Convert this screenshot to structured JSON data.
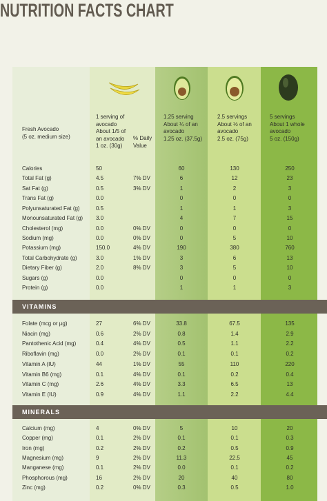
{
  "title": "NUTRITION FACTS CHART",
  "columns": [
    [
      "Fresh Avocado",
      "(5 oz. medium size)"
    ],
    [
      "1 serving of",
      "avocado",
      "About 1/5 of",
      "an avocado",
      "1 oz. (30g)"
    ],
    [
      "% Daily",
      "Value"
    ],
    [
      "1.25 serving",
      "About ¼ of an",
      "avocado",
      "1.25 oz. (37.5g)"
    ],
    [
      "2.5 servings",
      "About ½ of an",
      "avocado",
      "2.5 oz. (75g)"
    ],
    [
      "5 servings",
      "About 1 whole",
      "avocado",
      "5 oz. (150g)"
    ]
  ],
  "sections": [
    {
      "rows": [
        [
          "Calories",
          "50",
          null,
          "60",
          "130",
          "250"
        ],
        [
          "Total Fat (g)",
          "4.5",
          "7% DV",
          "6",
          "12",
          "23"
        ],
        [
          "Sat Fat (g)",
          "0.5",
          "3% DV",
          "1",
          "2",
          "3"
        ],
        [
          "Trans Fat (g)",
          "0.0",
          null,
          "0",
          "0",
          "0"
        ],
        [
          "Polyunsaturated Fat (g)",
          "0.5",
          null,
          "1",
          "1",
          "3"
        ],
        [
          "Monounsaturated Fat (g)",
          "3.0",
          null,
          "4",
          "7",
          "15"
        ],
        [
          "Cholesterol (mg)",
          "0.0",
          "0% DV",
          "0",
          "0",
          "0"
        ],
        [
          "Sodium (mg)",
          "0.0",
          "0% DV",
          "0",
          "5",
          "10"
        ],
        [
          "Potassium (mg)",
          "150.0",
          "4% DV",
          "190",
          "380",
          "760"
        ],
        [
          "Total Carbohydrate (g)",
          "3.0",
          "1% DV",
          "3",
          "6",
          "13"
        ],
        [
          "Dietary Fiber (g)",
          "2.0",
          "8% DV",
          "3",
          "5",
          "10"
        ],
        [
          "Sugars (g)",
          "0.0",
          null,
          "0",
          "0",
          "0"
        ],
        [
          "Protein (g)",
          "0.0",
          null,
          "1",
          "1",
          "3"
        ]
      ]
    },
    {
      "heading": "VITAMINS",
      "rows": [
        [
          "Folate (mcg or µg)",
          "27",
          "6% DV",
          "33.8",
          "67.5",
          "135"
        ],
        [
          "Niacin (mg)",
          "0.6",
          "2% DV",
          "0.8",
          "1.4",
          "2.9"
        ],
        [
          "Pantothenic Acid (mg)",
          "0.4",
          "4% DV",
          "0.5",
          "1.1",
          "2.2"
        ],
        [
          "Riboflavin (mg)",
          "0.0",
          "2% DV",
          "0.1",
          "0.1",
          "0.2"
        ],
        [
          "Vitamin A (IU)",
          "44",
          "1% DV",
          "55",
          "110",
          "220"
        ],
        [
          "Vitamin B6 (mg)",
          "0.1",
          "4% DV",
          "0.1",
          "0.2",
          "0.4"
        ],
        [
          "Vitamin C (mg)",
          "2.6",
          "4% DV",
          "3.3",
          "6.5",
          "13"
        ],
        [
          "Vitamin E (IU)",
          "0.9",
          "4% DV",
          "1.1",
          "2.2",
          "4.4"
        ]
      ]
    },
    {
      "heading": "MINERALS",
      "rows": [
        [
          "Calcium (mg)",
          "4",
          "0% DV",
          "5",
          "10",
          "20"
        ],
        [
          "Copper (mg)",
          "0.1",
          "2% DV",
          "0.1",
          "0.1",
          "0.3"
        ],
        [
          "Iron (mg)",
          "0.2",
          "2% DV",
          "0.2",
          "0.5",
          "0.9"
        ],
        [
          "Magnesium (mg)",
          "9",
          "2% DV",
          "11.3",
          "22.5",
          "45"
        ],
        [
          "Manganese (mg)",
          "0.1",
          "2% DV",
          "0.0",
          "0.1",
          "0.2"
        ],
        [
          "Phosphorous (mg)",
          "16",
          "2% DV",
          "20",
          "40",
          "80"
        ],
        [
          "Zinc (mg)",
          "0.2",
          "0% DV",
          "0.3",
          "0.5",
          "1.0"
        ]
      ]
    }
  ]
}
